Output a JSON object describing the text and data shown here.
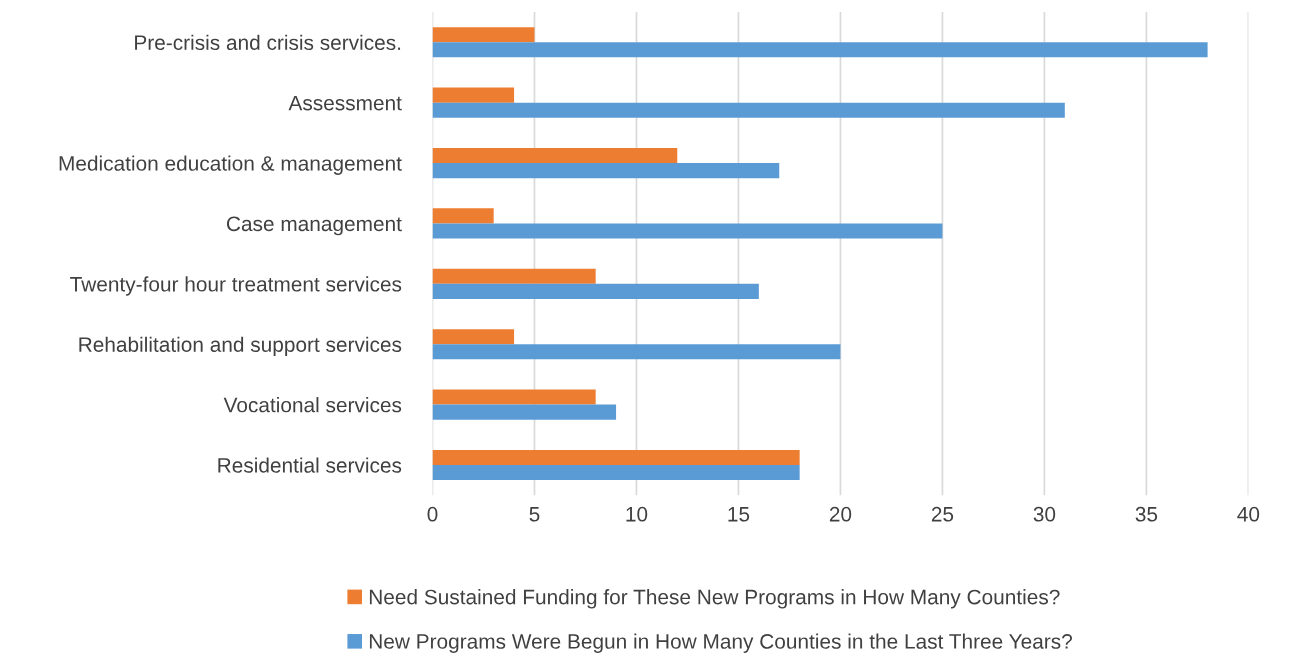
{
  "chart_data": {
    "type": "bar",
    "orientation": "horizontal",
    "categories": [
      "Pre-crisis and crisis services.",
      "Assessment",
      "Medication education & management",
      "Case management",
      "Twenty-four hour treatment services",
      "Rehabilitation and support services",
      "Vocational services",
      "Residential services"
    ],
    "series": [
      {
        "name": "Need Sustained Funding for These New Programs in How Many Counties?",
        "color": "#ed7d31",
        "values": [
          5,
          4,
          12,
          3,
          8,
          4,
          8,
          18
        ]
      },
      {
        "name": "New Programs Were Begun in How Many Counties in the Last Three Years?",
        "color": "#5b9bd5",
        "values": [
          38,
          31,
          17,
          25,
          16,
          20,
          9,
          18
        ]
      }
    ],
    "xlim": [
      0,
      40
    ],
    "xticks": [
      0,
      5,
      10,
      15,
      20,
      25,
      30,
      35,
      40
    ],
    "grid": "x",
    "legend": "bottom"
  }
}
